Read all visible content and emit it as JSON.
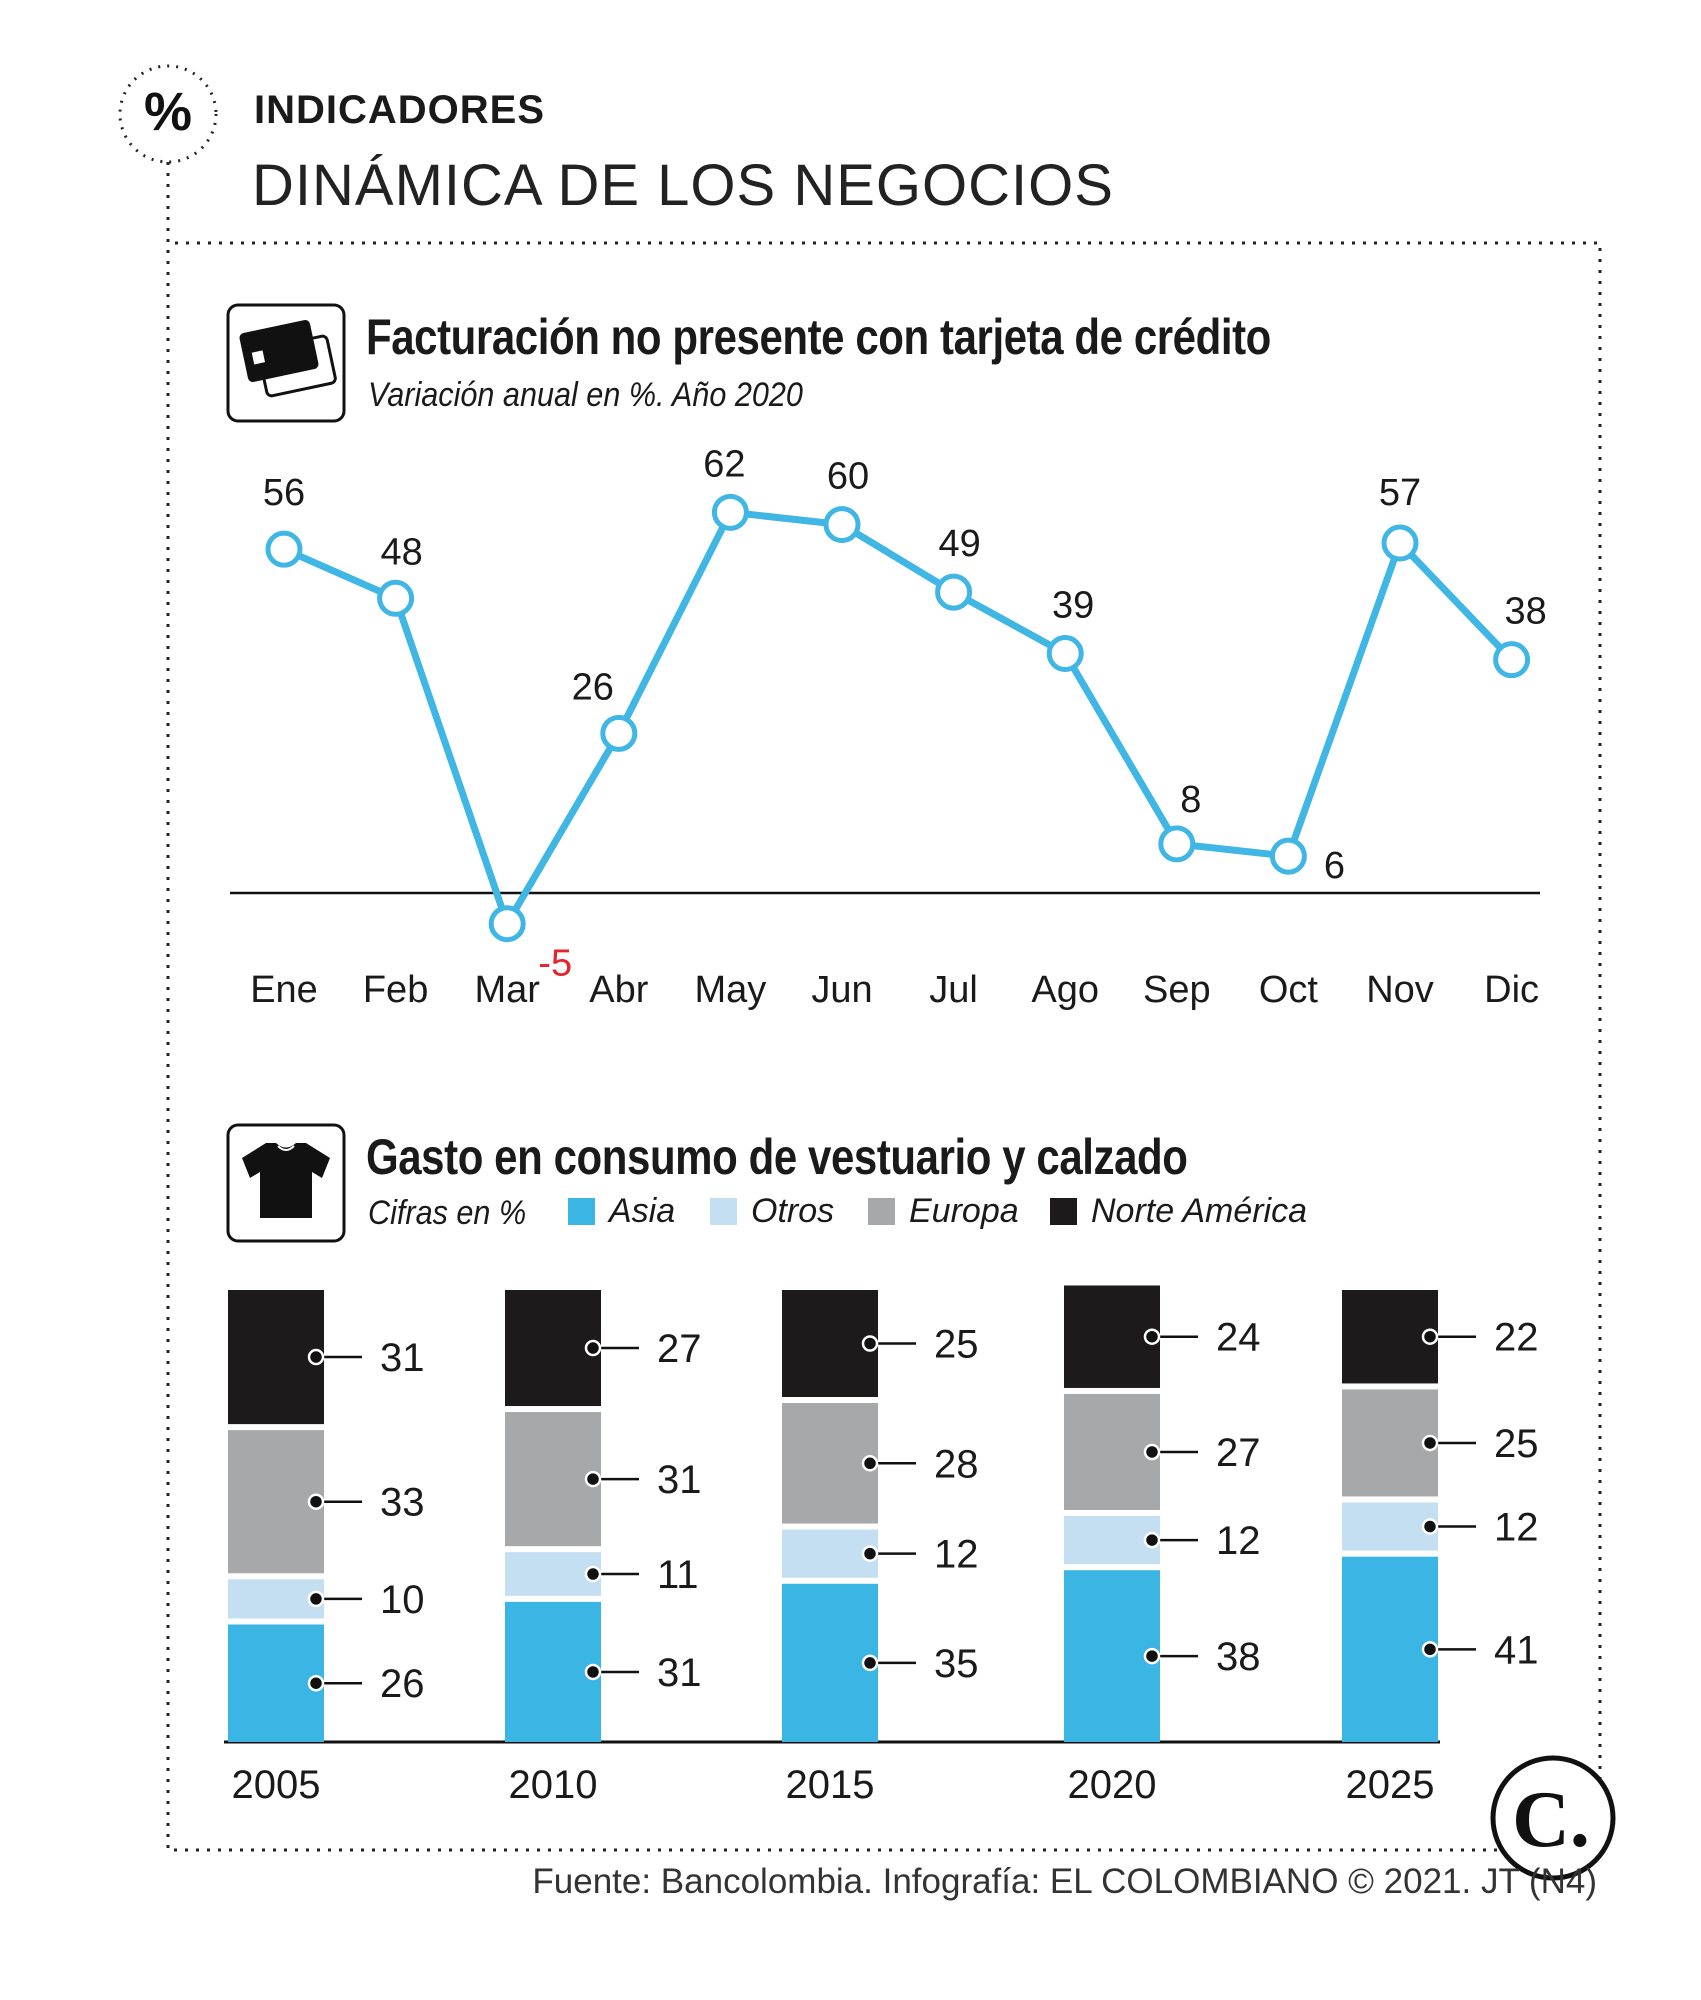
{
  "header": {
    "kicker": "INDICADORES",
    "title": "DINÁMICA DE LOS NEGOCIOS",
    "badge_glyph": "%"
  },
  "colors": {
    "line": "#3fb6e3",
    "asia": "#3bb6e4",
    "otros": "#c4dff2",
    "europa": "#a7a8aa",
    "norte_america": "#1c1a1b",
    "negative_label": "#e3262d"
  },
  "icons": [
    "percent-icon",
    "credit-card-icon",
    "t-shirt-icon",
    "el-colombiano-logo"
  ],
  "chart_data": [
    {
      "type": "line",
      "title": "Facturación no presente con tarjeta de crédito",
      "subtitle": "Variación anual en %. Año 2020",
      "categories": [
        "Ene",
        "Feb",
        "Mar",
        "Abr",
        "May",
        "Jun",
        "Jul",
        "Ago",
        "Sep",
        "Oct",
        "Nov",
        "Dic"
      ],
      "values": [
        56,
        48,
        -5,
        26,
        62,
        60,
        49,
        39,
        8,
        6,
        57,
        38
      ],
      "labels": [
        "56",
        "48",
        "-5",
        "26",
        "62",
        "60",
        "49",
        "39",
        "8",
        "6",
        "57",
        "38"
      ],
      "ylim": [
        -5,
        62
      ],
      "grid": false
    },
    {
      "type": "bar",
      "stacked": true,
      "title": "Gasto en consumo de vestuario y calzado",
      "subtitle": "Cifras en %",
      "categories": [
        "2005",
        "2010",
        "2015",
        "2020",
        "2025"
      ],
      "series": [
        {
          "name": "Asia",
          "key": "asia",
          "values": [
            26,
            31,
            35,
            38,
            41
          ],
          "labels": [
            "26",
            "31",
            "35",
            "38",
            "41"
          ]
        },
        {
          "name": "Otros",
          "key": "otros",
          "values": [
            10,
            11,
            12,
            12,
            12
          ],
          "labels": [
            "10",
            "11",
            "12",
            "12",
            "12"
          ]
        },
        {
          "name": "Europa",
          "key": "europa",
          "values": [
            33,
            31,
            28,
            27,
            25
          ],
          "labels": [
            "33",
            "31",
            "28",
            "27",
            "25"
          ]
        },
        {
          "name": "Norte América",
          "key": "norte_america",
          "values": [
            31,
            27,
            25,
            24,
            22
          ],
          "labels": [
            "31",
            "27",
            "25",
            "24",
            "22"
          ]
        }
      ],
      "legend": "top",
      "grid": false
    }
  ],
  "footer": {
    "source": "Fuente: Bancolombia. Infografía: EL COLOMBIANO © 2021. JT (N4)",
    "logo_glyph": "C."
  }
}
